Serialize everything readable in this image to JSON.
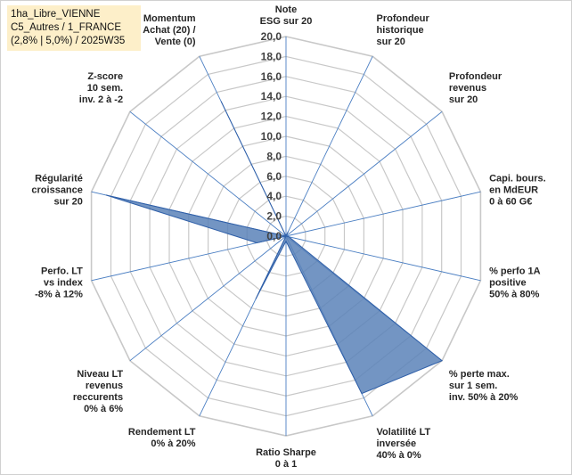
{
  "info_box": {
    "lines": [
      "1ha_Libre_VIENNE",
      "C5_Autres / 1_FRANCE",
      "(2,8% | 5,0%) / 2025W35"
    ]
  },
  "colors": {
    "grid": "#c8c8c8",
    "spoke": "#4a7ec2",
    "fill": "#5b82b8",
    "stroke": "#2f5fa8",
    "tick": "#404040"
  },
  "chart_data": {
    "type": "radar",
    "rmax": 20,
    "tick_values": [
      0,
      2,
      4,
      6,
      8,
      10,
      12,
      14,
      16,
      18,
      20
    ],
    "tick_labels": [
      "0,0",
      "2,0",
      "4,0",
      "6,0",
      "8,0",
      "10,0",
      "12,0",
      "14,0",
      "16,0",
      "18,0",
      "20,0"
    ],
    "axes": [
      {
        "label": [
          "Note",
          "ESG sur 20"
        ],
        "value": 0
      },
      {
        "label": [
          "Profondeur",
          "historique",
          "sur 20"
        ],
        "value": 0.5
      },
      {
        "label": [
          "Profondeur",
          "revenus",
          "sur 20"
        ],
        "value": 0
      },
      {
        "label": [
          "Capi. bours.",
          "en MdEUR",
          "0 à 60 G€"
        ],
        "value": 0
      },
      {
        "label": [
          "% perfo 1A",
          "positive",
          "50% à 80%"
        ],
        "value": 0.3
      },
      {
        "label": [
          "% perte max.",
          "sur 1 sem.",
          "inv. 50% à 20%"
        ],
        "value": 20
      },
      {
        "label": [
          "Volatilité LT",
          "inversée",
          "40% à 0%"
        ],
        "value": 17.5
      },
      {
        "label": [
          "Ratio Sharpe",
          "0 à 1"
        ],
        "value": 0.5
      },
      {
        "label": [
          "Rendement LT",
          "0% à 20%"
        ],
        "value": 7
      },
      {
        "label": [
          "Niveau LT",
          "revenus",
          "reccurents",
          "0% à 6%"
        ],
        "value": 0
      },
      {
        "label": [
          "Perfo. LT",
          "vs index",
          "-8% à 12%"
        ],
        "value": 3
      },
      {
        "label": [
          "Régularité",
          "croissance",
          "sur 20"
        ],
        "value": 18.5
      },
      {
        "label": [
          "Z-score",
          "10 sem.",
          "inv. 2 à -2"
        ],
        "value": 0
      },
      {
        "label": [
          "Momentum",
          "Achat (20) /",
          "Vente (0)"
        ],
        "value": 15
      }
    ]
  }
}
